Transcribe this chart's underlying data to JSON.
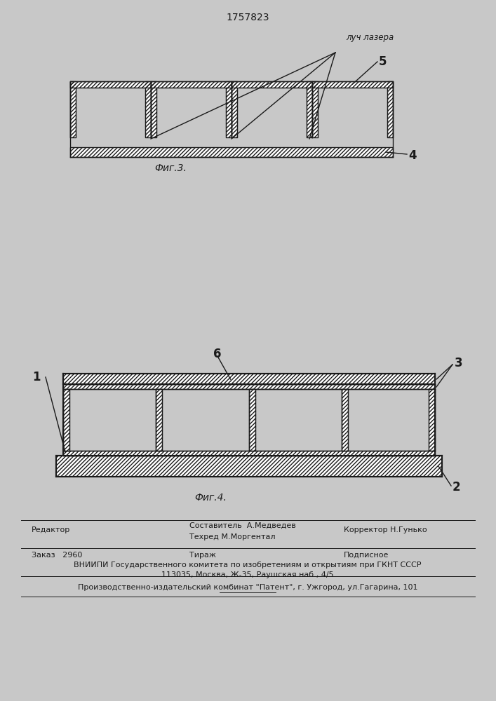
{
  "title": "1757823",
  "fig3_label": "Фиг.3.",
  "fig4_label": "Фиг.4.",
  "laser_label": "луч лазера",
  "label_5": "5",
  "label_4": "4",
  "label_1": "1",
  "label_2": "2",
  "label_3": "3",
  "label_6": "6",
  "footer_line1_col1": "Редактор",
  "footer_line1_col2": "Составитель  А.Медведев",
  "footer_line1_col3": "Корректор Н.Гунько",
  "footer_line2_col2": "Техред М.Моргентал",
  "footer_line3_col1": "Заказ   2960",
  "footer_line3_col2": "Тираж",
  "footer_line3_col3": "Подписное",
  "footer_line4": "ВНИИПИ Государственного комитета по изобретениям и открытиям при ГКНТ СССР",
  "footer_line5": "113035, Москва, Ж-35, Раушская наб., 4/5",
  "footer_line6": "Производственно-издательский комбинат \"Патент\", г. Ужгород, ул.Гагарина, 101",
  "bg_color": "#c8c8c8",
  "line_color": "#1a1a1a"
}
